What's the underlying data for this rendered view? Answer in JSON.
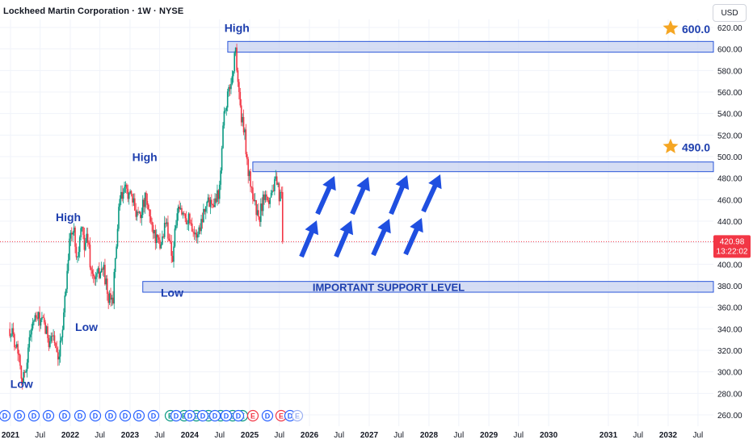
{
  "header": {
    "title": "Lockheed Martin Corporation · 1W · NYSE",
    "currency": "USD"
  },
  "price_badge": {
    "price": "420.98",
    "countdown": "13:22:02",
    "color": "#f23645"
  },
  "colors": {
    "up": "#089981",
    "down": "#f23645",
    "zone_fill": "#c7d2f0",
    "zone_border": "#2955d9",
    "label_text": "#1e3fae",
    "arrow": "#1f4fe0",
    "star": "#f5a623",
    "grid": "#f0f3fa"
  },
  "annotations": {
    "labels": [
      {
        "text": "High",
        "date": "2024-10-15",
        "price": 616
      },
      {
        "text": "High",
        "date": "2023-04-01",
        "price": 496
      },
      {
        "text": "High",
        "date": "2021-12-20",
        "price": 440
      },
      {
        "text": "Low",
        "date": "2022-04-10",
        "price": 338
      },
      {
        "text": "Low",
        "date": "2021-03-10",
        "price": 285
      },
      {
        "text": "Low",
        "date": "2023-09-15",
        "price": 370
      }
    ],
    "zones": [
      {
        "from_date": "2024-08-20",
        "price_low": 597,
        "price_high": 607
      },
      {
        "from_date": "2025-01-20",
        "price_low": 486,
        "price_high": 495
      },
      {
        "from_date": "2023-03-20",
        "price_low": 374,
        "price_high": 384
      }
    ],
    "support_label": "IMPORTANT SUPPORT LEVEL",
    "targets": [
      {
        "text": "600.0",
        "price": 602
      },
      {
        "text": "490.0",
        "price": 492
      }
    ]
  },
  "chart_data": {
    "type": "candlestick",
    "title": "Lockheed Martin Corporation · 1W · NYSE",
    "x_range": [
      "2020-12-28",
      "2032-10-01"
    ],
    "ylim": [
      253,
      628
    ],
    "y_ticks": [
      "260.00",
      "280.00",
      "300.00",
      "320.00",
      "340.00",
      "360.00",
      "380.00",
      "400.00",
      "420.00",
      "440.00",
      "460.00",
      "480.00",
      "500.00",
      "520.00",
      "540.00",
      "560.00",
      "580.00",
      "600.00",
      "620.00"
    ],
    "x_ticks": [
      {
        "label": "2021",
        "date": "2021-01-01"
      },
      {
        "label": "Jul",
        "date": "2021-07-01"
      },
      {
        "label": "2022",
        "date": "2022-01-01"
      },
      {
        "label": "Jul",
        "date": "2022-07-01"
      },
      {
        "label": "2023",
        "date": "2023-01-01"
      },
      {
        "label": "Jul",
        "date": "2023-07-01"
      },
      {
        "label": "2024",
        "date": "2024-01-01"
      },
      {
        "label": "Jul",
        "date": "2024-07-01"
      },
      {
        "label": "2025",
        "date": "2025-01-01"
      },
      {
        "label": "Jul",
        "date": "2025-07-01"
      },
      {
        "label": "2026",
        "date": "2026-01-01"
      },
      {
        "label": "Jul",
        "date": "2026-07-01"
      },
      {
        "label": "2027",
        "date": "2027-01-01"
      },
      {
        "label": "Jul",
        "date": "2027-07-01"
      },
      {
        "label": "2028",
        "date": "2028-01-01"
      },
      {
        "label": "Jul",
        "date": "2028-07-01"
      },
      {
        "label": "2029",
        "date": "2029-01-01"
      },
      {
        "label": "Jul",
        "date": "2029-07-01"
      },
      {
        "label": "2030",
        "date": "2030-01-01"
      },
      {
        "label": "2031",
        "date": "2031-01-01"
      },
      {
        "label": "Jul",
        "date": "2031-07-01"
      },
      {
        "label": "2032",
        "date": "2032-01-01"
      },
      {
        "label": "Jul",
        "date": "2032-07-01"
      }
    ],
    "price_path": [
      [
        "2020-12-28",
        340
      ],
      [
        "2021-01-25",
        330
      ],
      [
        "2021-02-22",
        318
      ],
      [
        "2021-03-15",
        290
      ],
      [
        "2021-04-05",
        305
      ],
      [
        "2021-05-10",
        345
      ],
      [
        "2021-06-14",
        350
      ],
      [
        "2021-07-19",
        345
      ],
      [
        "2021-08-23",
        330
      ],
      [
        "2021-09-20",
        335
      ],
      [
        "2021-10-18",
        305
      ],
      [
        "2021-11-01",
        322
      ],
      [
        "2021-12-06",
        380
      ],
      [
        "2021-12-27",
        425
      ],
      [
        "2022-01-24",
        430
      ],
      [
        "2022-02-14",
        405
      ],
      [
        "2022-03-07",
        432
      ],
      [
        "2022-03-28",
        420
      ],
      [
        "2022-04-18",
        425
      ],
      [
        "2022-05-09",
        392
      ],
      [
        "2022-06-06",
        385
      ],
      [
        "2022-07-04",
        395
      ],
      [
        "2022-07-25",
        395
      ],
      [
        "2022-08-22",
        365
      ],
      [
        "2022-09-19",
        370
      ],
      [
        "2022-10-10",
        420
      ],
      [
        "2022-10-31",
        460
      ],
      [
        "2022-11-21",
        465
      ],
      [
        "2022-12-12",
        470
      ],
      [
        "2023-01-09",
        460
      ],
      [
        "2023-02-06",
        450
      ],
      [
        "2023-03-06",
        448
      ],
      [
        "2023-04-03",
        460
      ],
      [
        "2023-05-01",
        445
      ],
      [
        "2023-06-05",
        425
      ],
      [
        "2023-07-03",
        415
      ],
      [
        "2023-08-07",
        440
      ],
      [
        "2023-08-28",
        425
      ],
      [
        "2023-09-18",
        405
      ],
      [
        "2023-10-09",
        440
      ],
      [
        "2023-10-30",
        450
      ],
      [
        "2023-12-04",
        445
      ],
      [
        "2024-01-08",
        440
      ],
      [
        "2024-02-05",
        425
      ],
      [
        "2024-03-04",
        435
      ],
      [
        "2024-04-01",
        455
      ],
      [
        "2024-05-06",
        460
      ],
      [
        "2024-06-03",
        460
      ],
      [
        "2024-07-01",
        470
      ],
      [
        "2024-07-22",
        535
      ],
      [
        "2024-08-19",
        555
      ],
      [
        "2024-09-16",
        575
      ],
      [
        "2024-10-07",
        600
      ],
      [
        "2024-10-21",
        570
      ],
      [
        "2024-11-11",
        535
      ],
      [
        "2024-12-02",
        520
      ],
      [
        "2024-12-23",
        485
      ],
      [
        "2025-01-13",
        470
      ],
      [
        "2025-02-03",
        455
      ],
      [
        "2025-02-24",
        440
      ],
      [
        "2025-03-17",
        455
      ],
      [
        "2025-04-07",
        470
      ],
      [
        "2025-04-28",
        460
      ],
      [
        "2025-05-19",
        470
      ],
      [
        "2025-06-09",
        475
      ],
      [
        "2025-06-30",
        465
      ],
      [
        "2025-07-14",
        460
      ],
      [
        "2025-07-21",
        421
      ]
    ],
    "last_price": 420.98
  }
}
